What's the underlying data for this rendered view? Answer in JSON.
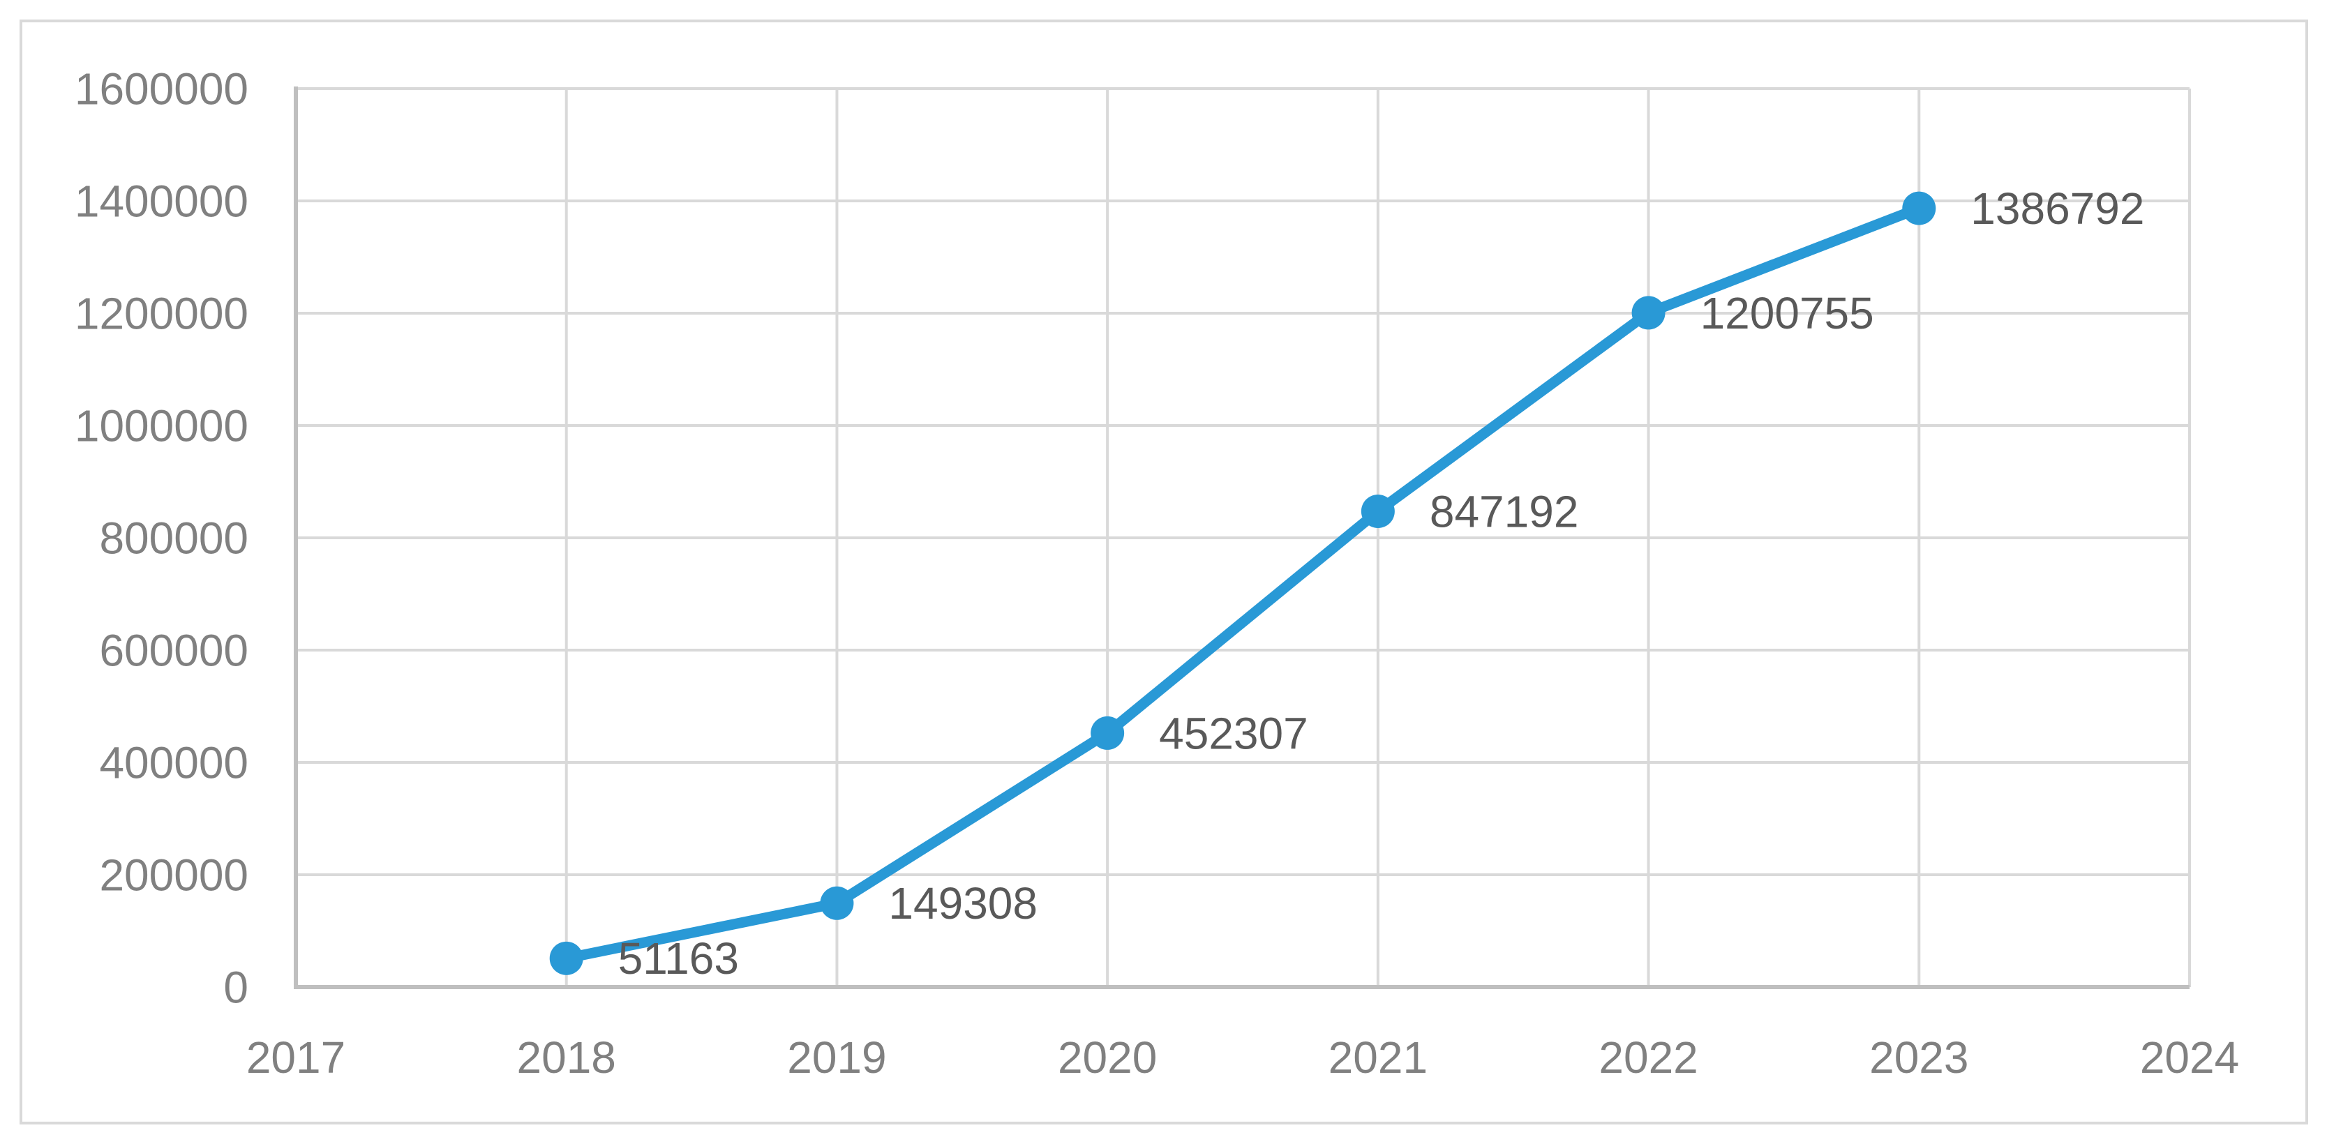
{
  "chart_data": {
    "type": "line",
    "title": "",
    "xlabel": "",
    "ylabel": "",
    "legend": "none",
    "grid": "both",
    "ylim": [
      0,
      1600000
    ],
    "y_tick_step": 200000,
    "y_tick_labels": [
      "0",
      "200000",
      "400000",
      "600000",
      "800000",
      "1000000",
      "1200000",
      "1400000",
      "1600000"
    ],
    "x_tick_labels": [
      "2017",
      "2018",
      "2019",
      "2020",
      "2021",
      "2022",
      "2023",
      "2024"
    ],
    "series": [
      {
        "x": [
          "2018",
          "2019",
          "2020",
          "2021",
          "2022",
          "2023"
        ],
        "values": [
          51163,
          149308,
          452307,
          847192,
          1200755,
          1386792
        ],
        "data_labels": [
          "51163",
          "149308",
          "452307",
          "847192",
          "1200755",
          "1386792"
        ],
        "marker": "circle"
      }
    ]
  },
  "style": {
    "line_color": "#2999D6",
    "marker_color": "#2999D6",
    "gridline_color": "#D9D9D9",
    "axis_line_color": "#BFBFBF",
    "tick_label_color": "#808080",
    "data_label_color": "#595959",
    "frame_border_color": "#D9D9D9",
    "background_color": "#FFFFFF"
  }
}
